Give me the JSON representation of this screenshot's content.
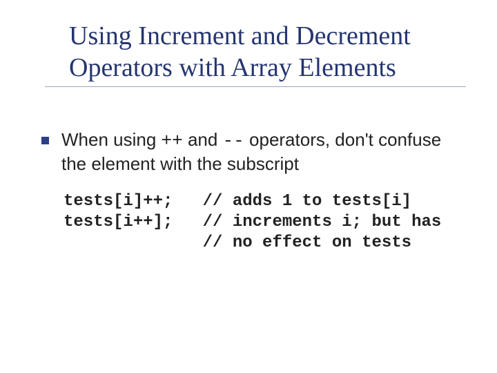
{
  "colors": {
    "title": "#24356f",
    "underline": "#24356f",
    "bullet": "#2b3f87",
    "text": "#222222",
    "background": "#ffffff"
  },
  "typography": {
    "title_family": "Times New Roman",
    "title_size_pt": 38,
    "body_family": "Verdana",
    "body_size_pt": 26,
    "code_family": "Courier New",
    "code_size_pt": 24,
    "code_weight": "bold"
  },
  "title": {
    "line1": "Using Increment and Decrement",
    "line2": "Operators with Array Elements"
  },
  "bullet_text": {
    "pre": "When using ",
    "op1": "++",
    "mid1": " and ",
    "op2": "--",
    "post": " operators, don't confuse the element with the subscript"
  },
  "code": {
    "line1": "tests[i]++;   // adds 1 to tests[i]",
    "line2": "tests[i++];   // increments i; but has",
    "line3": "              // no effect on tests"
  }
}
